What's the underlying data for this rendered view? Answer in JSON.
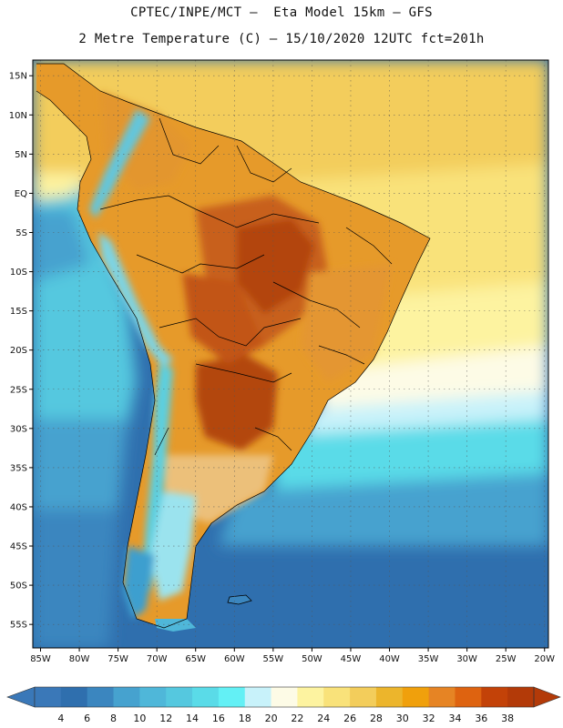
{
  "header": {
    "line1": "CPTEC/INPE/MCT –  Eta Model 15km – GFS",
    "line2": "2 Metre Temperature (C) – 15/10/2020 12UTC fct=201h"
  },
  "map": {
    "lon_range": [
      -86,
      -19.5
    ],
    "lat_range": [
      -58,
      17
    ],
    "lat_ticks": [
      {
        "value": 15,
        "label": "15N"
      },
      {
        "value": 10,
        "label": "10N"
      },
      {
        "value": 5,
        "label": "5N"
      },
      {
        "value": 0,
        "label": "EQ"
      },
      {
        "value": -5,
        "label": "5S"
      },
      {
        "value": -10,
        "label": "10S"
      },
      {
        "value": -15,
        "label": "15S"
      },
      {
        "value": -20,
        "label": "20S"
      },
      {
        "value": -25,
        "label": "25S"
      },
      {
        "value": -30,
        "label": "30S"
      },
      {
        "value": -35,
        "label": "35S"
      },
      {
        "value": -40,
        "label": "40S"
      },
      {
        "value": -45,
        "label": "45S"
      },
      {
        "value": -50,
        "label": "50S"
      },
      {
        "value": -55,
        "label": "55S"
      }
    ],
    "lon_ticks": [
      {
        "value": -85,
        "label": "85W"
      },
      {
        "value": -80,
        "label": "80W"
      },
      {
        "value": -75,
        "label": "75W"
      },
      {
        "value": -70,
        "label": "70W"
      },
      {
        "value": -65,
        "label": "65W"
      },
      {
        "value": -60,
        "label": "60W"
      },
      {
        "value": -55,
        "label": "55W"
      },
      {
        "value": -50,
        "label": "50W"
      },
      {
        "value": -45,
        "label": "45W"
      },
      {
        "value": -40,
        "label": "40W"
      },
      {
        "value": -35,
        "label": "35W"
      },
      {
        "value": -30,
        "label": "30W"
      },
      {
        "value": -25,
        "label": "25W"
      },
      {
        "value": -20,
        "label": "20W"
      }
    ],
    "grid": true
  },
  "colorbar": {
    "labels": [
      "4",
      "6",
      "8",
      "10",
      "12",
      "14",
      "16",
      "18",
      "20",
      "22",
      "24",
      "26",
      "28",
      "30",
      "32",
      "34",
      "36",
      "38"
    ],
    "colors": [
      "#3a78b8",
      "#2f6fae",
      "#3b86bf",
      "#46a2cf",
      "#4fb7d9",
      "#55c8df",
      "#5adbe8",
      "#63f0f5",
      "#c8f2fa",
      "#fdfbe6",
      "#fdf3a0",
      "#f9e27a",
      "#f3cd5b",
      "#ecb52c",
      "#f0a00c",
      "#e68424",
      "#de6310",
      "#c34208",
      "#b33a08"
    ],
    "under_color": "#3a78b8",
    "over_color": "#b33a08"
  }
}
